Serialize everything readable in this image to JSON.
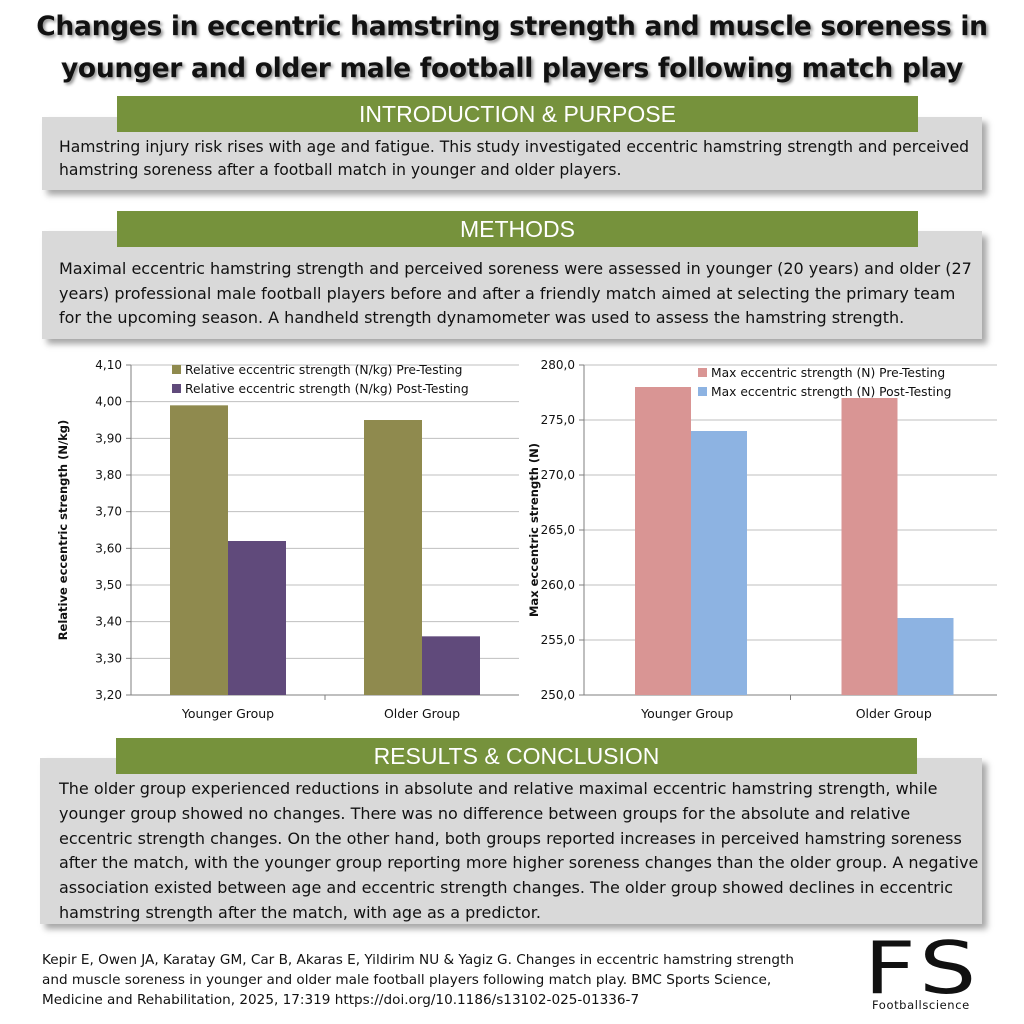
{
  "title": "Changes in eccentric hamstring strength and muscle soreness in younger and older male football players following match play",
  "sections": {
    "intro": {
      "heading": "INTRODUCTION & PURPOSE",
      "text": "Hamstring injury risk rises with age and fatigue. This study investigated eccentric hamstring strength and perceived hamstring soreness after a football match in younger and older players."
    },
    "methods": {
      "heading": "METHODS",
      "text": "Maximal eccentric hamstring strength and perceived soreness were assessed in younger (20 years) and older (27 years) professional male football players before and after a friendly match aimed at selecting the primary team for the upcoming season. A handheld strength dynamometer was used to assess the hamstring strength."
    },
    "results": {
      "heading": "RESULTS & CONCLUSION",
      "text": "The older group experienced reductions in absolute and relative maximal eccentric hamstring strength, while younger group showed no changes. There was no difference between groups for the absolute and relative eccentric strength changes. On the other hand, both groups reported increases in perceived hamstring soreness after the match, with the younger group reporting more higher soreness changes than the older group. A negative association existed between age and eccentric strength changes. The older group showed declines in eccentric hamstring strength after the match, with age as a predictor."
    }
  },
  "citation": "Kepir E, Owen JA, Karatay GM, Car B, Akaras E, Yildirim NU & Yagiz G. Changes in eccentric hamstring strength and muscle soreness in younger and older male football players following match play. BMC Sports Science, Medicine and Rehabilitation, 2025, 17:319 https://doi.org/10.1186/s13102-025-01336-7",
  "logo": {
    "letters": "FS",
    "subtitle": "Footballscience"
  },
  "chart_data": [
    {
      "type": "bar",
      "categories": [
        "Younger Group",
        "Older Group"
      ],
      "series": [
        {
          "name": "Relative eccentric strength (N/kg) Pre-Testing",
          "values": [
            3.99,
            3.95
          ],
          "color": "#8f8a4e"
        },
        {
          "name": "Relative eccentric strength (N/kg) Post-Testing",
          "values": [
            3.62,
            3.36
          ],
          "color": "#604a7b"
        }
      ],
      "ylabel": "Relative eccentric strength (N/kg)",
      "ylim": [
        3.2,
        4.1
      ],
      "yticks": [
        "3,20",
        "3,30",
        "3,40",
        "3,50",
        "3,60",
        "3,70",
        "3,80",
        "3,90",
        "4,00",
        "4,10"
      ],
      "grid": true,
      "legend": "top-left"
    },
    {
      "type": "bar",
      "categories": [
        "Younger Group",
        "Older Group"
      ],
      "series": [
        {
          "name": "Max eccentric strength (N) Pre-Testing",
          "values": [
            278,
            277
          ],
          "color": "#d99594"
        },
        {
          "name": "Max eccentric strength (N) Post-Testing",
          "values": [
            274,
            257
          ],
          "color": "#8db3e2"
        }
      ],
      "ylabel": "Max eccentric strength (N)",
      "ylim": [
        250,
        280
      ],
      "yticks": [
        "250,0",
        "255,0",
        "260,0",
        "265,0",
        "270,0",
        "275,0",
        "280,0"
      ],
      "grid": true,
      "legend": "top-left"
    }
  ]
}
